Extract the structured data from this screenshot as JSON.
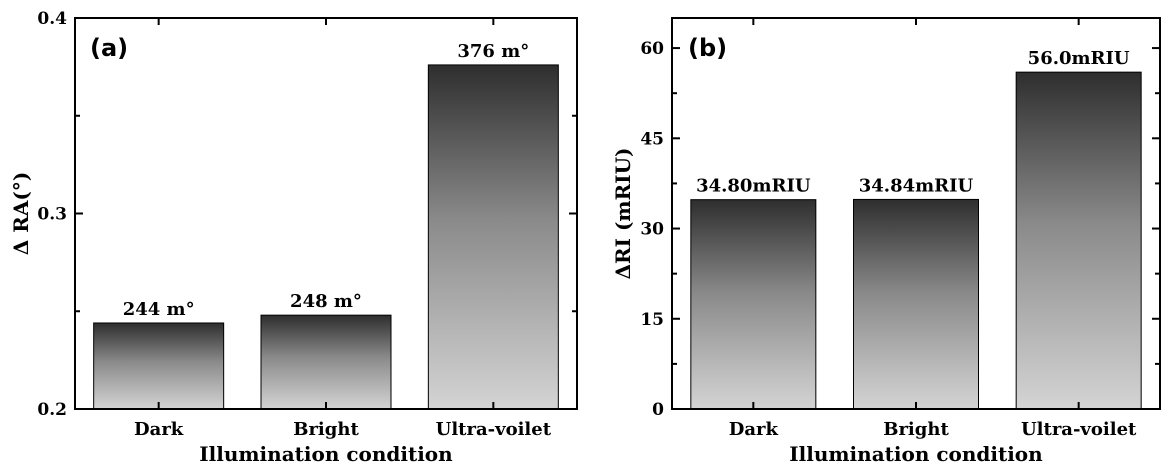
{
  "chart_data": [
    {
      "type": "bar",
      "panel_label": "(a)",
      "categories": [
        "Dark",
        "Bright",
        "Ultra-voilet"
      ],
      "values": [
        0.244,
        0.248,
        0.376
      ],
      "data_labels": [
        "244 m°",
        "248 m°",
        "376 m°"
      ],
      "xlabel": "Illumination condition",
      "ylabel": "Δ RA(°)",
      "ylim": [
        0.2,
        0.4
      ],
      "yticks": [
        0.2,
        0.3,
        0.4
      ],
      "ytick_labels": [
        "0.2",
        "0.3",
        "0.4"
      ],
      "grid": false,
      "bar_fill": "vertical gradient, dark gray top to light gray bottom"
    },
    {
      "type": "bar",
      "panel_label": "(b)",
      "categories": [
        "Dark",
        "Bright",
        "Ultra-voilet"
      ],
      "values": [
        34.8,
        34.84,
        56.0
      ],
      "data_labels": [
        "34.80mRIU",
        "34.84mRIU",
        "56.0mRIU"
      ],
      "xlabel": "Illumination condition",
      "ylabel": "ΔRI (mRIU)",
      "ylim": [
        0,
        65
      ],
      "yticks": [
        0,
        15,
        30,
        45,
        60
      ],
      "ytick_labels": [
        "0",
        "15",
        "30",
        "45",
        "60"
      ],
      "grid": false,
      "bar_fill": "vertical gradient, dark gray top to light gray bottom"
    }
  ],
  "colors": {
    "bar_top": "#2e2e2e",
    "bar_bottom": "#d4d4d4",
    "axis": "#000000",
    "background": "#ffffff"
  }
}
